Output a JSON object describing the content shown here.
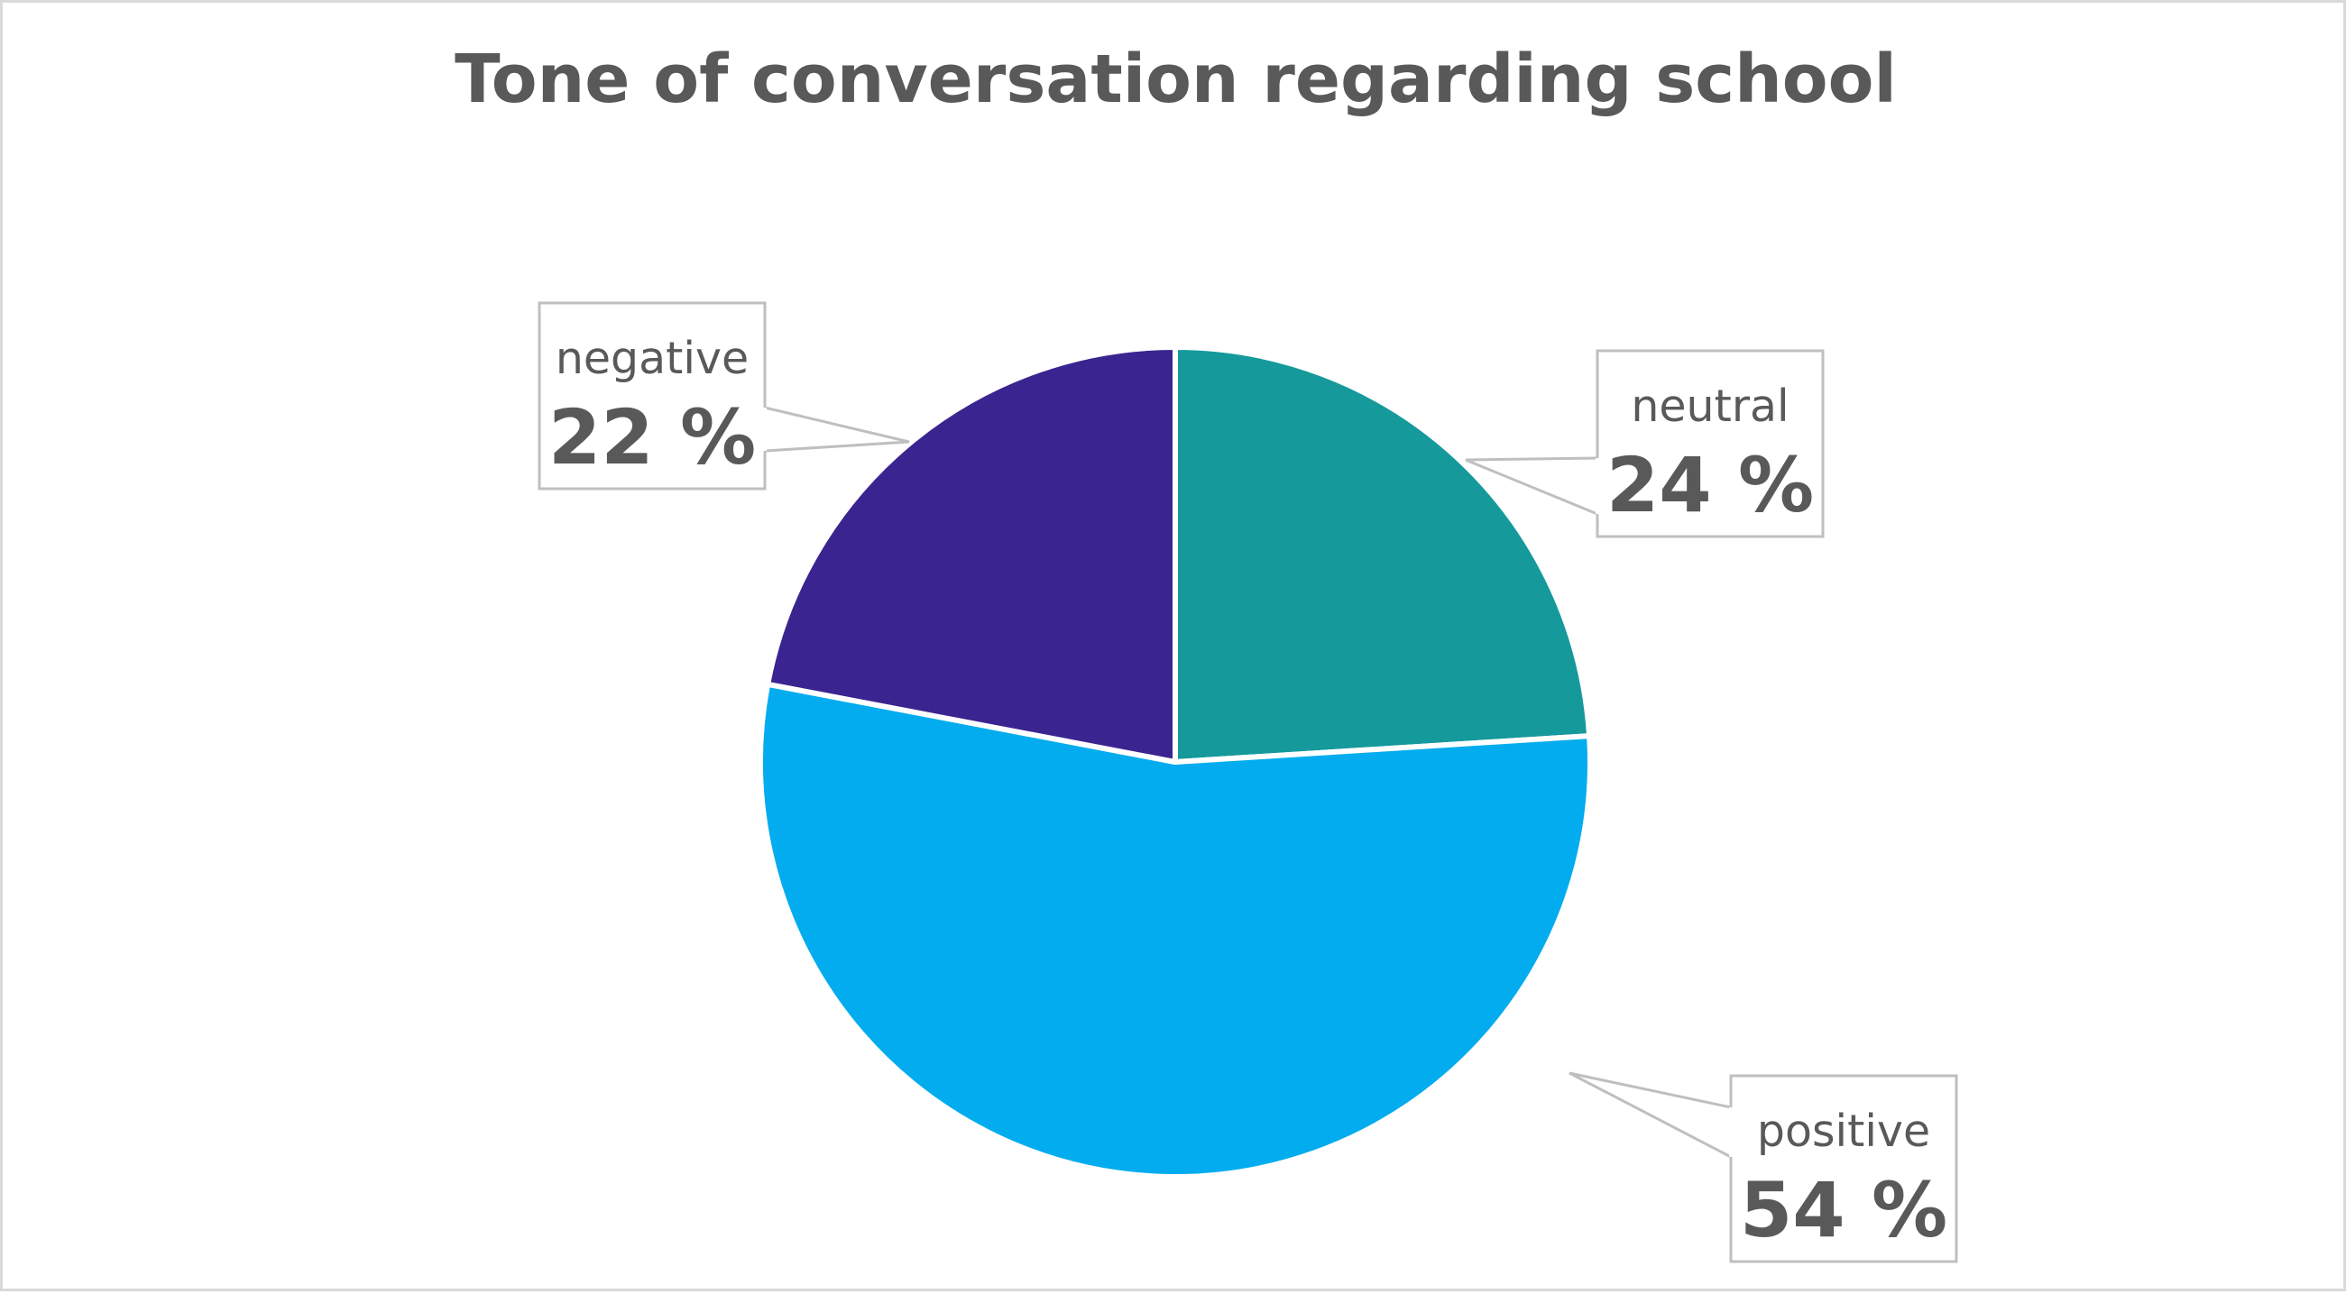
{
  "chart_data": {
    "type": "pie",
    "title": "Tone of conversation regarding school",
    "start_angle_deg": 0,
    "direction": "clockwise",
    "slices": [
      {
        "name": "neutral",
        "value": 24,
        "label": "24 %",
        "color": "#15999B"
      },
      {
        "name": "positive",
        "value": 54,
        "label": "54 %",
        "color": "#02ACEE"
      },
      {
        "name": "negative",
        "value": 22,
        "label": "22 %",
        "color": "#3A2590"
      }
    ],
    "legend": "none",
    "data_label_style": "callout"
  },
  "colors": {
    "text": "#595959",
    "border": "#d9d9d9",
    "leader": "#bfbfbf",
    "background": "#ffffff"
  }
}
